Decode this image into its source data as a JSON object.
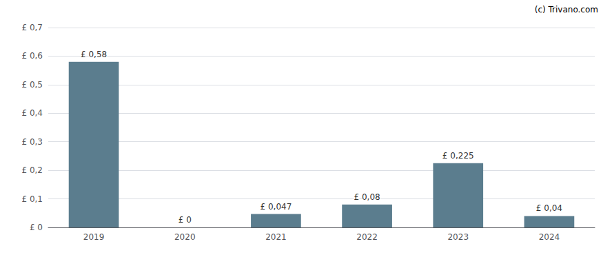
{
  "chart_data": {
    "type": "bar",
    "categories": [
      "2019",
      "2020",
      "2021",
      "2022",
      "2023",
      "2024"
    ],
    "values": [
      0.58,
      0.0,
      0.047,
      0.08,
      0.225,
      0.04
    ],
    "value_labels": [
      "£ 0,58",
      "£ 0",
      "£ 0,047",
      "£ 0,08",
      "£ 0,225",
      "£ 0,04"
    ],
    "data_labels": true,
    "color": "#5b7d8e",
    "ylim": [
      0,
      0.7
    ],
    "yticks": [
      {
        "value": 0.0,
        "label": "£ 0"
      },
      {
        "value": 0.1,
        "label": "£ 0,1"
      },
      {
        "value": 0.2,
        "label": "£ 0,2"
      },
      {
        "value": 0.3,
        "label": "£ 0,3"
      },
      {
        "value": 0.4,
        "label": "£ 0,4"
      },
      {
        "value": 0.5,
        "label": "£ 0,5"
      },
      {
        "value": 0.6,
        "label": "£ 0,6"
      },
      {
        "value": 0.7,
        "label": "£ 0,7"
      }
    ],
    "grid": true,
    "annotations": [
      "(c) Trivano.com"
    ]
  }
}
